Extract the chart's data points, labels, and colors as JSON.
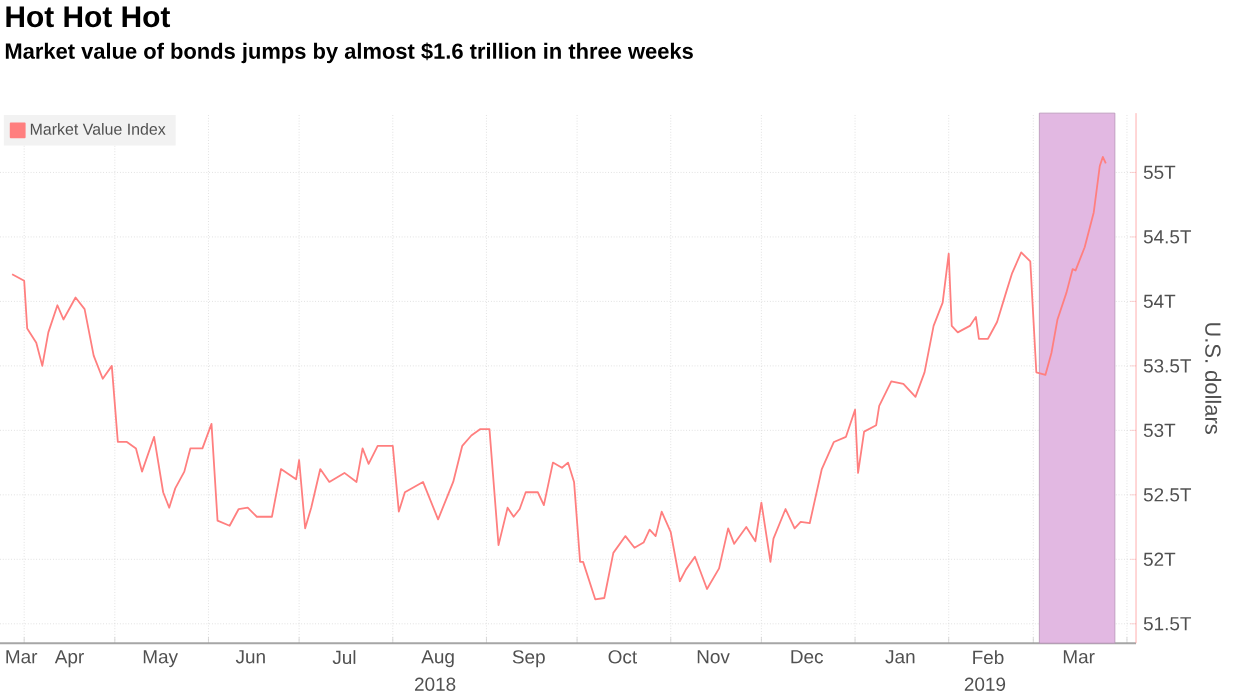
{
  "chart_data": {
    "type": "line",
    "title": "Hot Hot Hot",
    "subtitle": "Market value of bonds jumps by almost $1.6 trillion in three weeks",
    "ylabel": "U.S. dollars",
    "legend": "top left",
    "grid": true,
    "xlim": [
      "2018-03-24",
      "2019-04-04"
    ],
    "ylim": [
      51.35,
      55.46
    ],
    "xticks": [
      {
        "value": "2018-04-01",
        "label": null
      },
      {
        "value": "2018-05-01",
        "label": null
      },
      {
        "value": "2018-06-01",
        "label": null
      },
      {
        "value": "2018-07-01",
        "label": null
      },
      {
        "value": "2018-08-01",
        "label": null
      },
      {
        "value": "2018-09-01",
        "label": null
      },
      {
        "value": "2018-10-01",
        "label": null
      },
      {
        "value": "2018-11-01",
        "label": null
      },
      {
        "value": "2018-12-01",
        "label": null
      },
      {
        "value": "2019-01-01",
        "label": null
      },
      {
        "value": "2019-02-01",
        "label": null
      },
      {
        "value": "2019-03-01",
        "label": null
      },
      {
        "value": "2019-04-01",
        "label": null
      },
      {
        "value": "2018-03-31",
        "label": "Mar"
      },
      {
        "value": "2018-04-16",
        "label": "Apr"
      },
      {
        "value": "2018-05-16",
        "label": "May"
      },
      {
        "value": "2018-06-15",
        "label": "Jun"
      },
      {
        "value": "2018-07-16",
        "label": "Jul"
      },
      {
        "value": "2018-08-16",
        "label": "Aug"
      },
      {
        "value": "2018-09-15",
        "label": "Sep"
      },
      {
        "value": "2018-10-16",
        "label": "Oct"
      },
      {
        "value": "2018-11-15",
        "label": "Nov"
      },
      {
        "value": "2018-12-16",
        "label": "Dec"
      },
      {
        "value": "2019-01-16",
        "label": "Jan"
      },
      {
        "value": "2019-02-14",
        "label": "Feb"
      },
      {
        "value": "2019-03-16",
        "label": "Mar"
      }
    ],
    "yticks": [
      {
        "value": 51.5,
        "label": "51.5T"
      },
      {
        "value": 52,
        "label": "52T"
      },
      {
        "value": 52.5,
        "label": "52.5T"
      },
      {
        "value": 53,
        "label": "53T"
      },
      {
        "value": 53.5,
        "label": "53.5T"
      },
      {
        "value": 54,
        "label": "54T"
      },
      {
        "value": 54.5,
        "label": "54.5T"
      },
      {
        "value": 55,
        "label": "55T"
      }
    ],
    "annotations": [
      "2018",
      "2019"
    ],
    "bands": [
      {
        "axis": "x",
        "from": "2019-03-03",
        "to": "2019-03-28",
        "color": "#e2b8e2"
      }
    ],
    "x": [
      "2018-03-28",
      "2018-04-01",
      "2018-04-02",
      "2018-04-05",
      "2018-04-07",
      "2018-04-09",
      "2018-04-12",
      "2018-04-14",
      "2018-04-18",
      "2018-04-21",
      "2018-04-24",
      "2018-04-27",
      "2018-04-30",
      "2018-05-02",
      "2018-05-05",
      "2018-05-08",
      "2018-05-10",
      "2018-05-14",
      "2018-05-17",
      "2018-05-19",
      "2018-05-21",
      "2018-05-24",
      "2018-05-26",
      "2018-05-30",
      "2018-06-02",
      "2018-06-04",
      "2018-06-08",
      "2018-06-11",
      "2018-06-14",
      "2018-06-17",
      "2018-06-22",
      "2018-06-25",
      "2018-06-30",
      "2018-07-01",
      "2018-07-03",
      "2018-07-05",
      "2018-07-08",
      "2018-07-11",
      "2018-07-16",
      "2018-07-20",
      "2018-07-22",
      "2018-07-24",
      "2018-07-27",
      "2018-08-01",
      "2018-08-03",
      "2018-08-05",
      "2018-08-11",
      "2018-08-16",
      "2018-08-21",
      "2018-08-24",
      "2018-08-27",
      "2018-08-30",
      "2018-09-02",
      "2018-09-05",
      "2018-09-08",
      "2018-09-10",
      "2018-09-12",
      "2018-09-14",
      "2018-09-18",
      "2018-09-20",
      "2018-09-23",
      "2018-09-26",
      "2018-09-28",
      "2018-09-30",
      "2018-10-02",
      "2018-10-03",
      "2018-10-07",
      "2018-10-10",
      "2018-10-13",
      "2018-10-17",
      "2018-10-20",
      "2018-10-23",
      "2018-10-25",
      "2018-10-27",
      "2018-10-29",
      "2018-11-01",
      "2018-11-04",
      "2018-11-06",
      "2018-11-09",
      "2018-11-13",
      "2018-11-17",
      "2018-11-20",
      "2018-11-22",
      "2018-11-26",
      "2018-11-29",
      "2018-12-01",
      "2018-12-04",
      "2018-12-05",
      "2018-12-09",
      "2018-12-12",
      "2018-12-14",
      "2018-12-17",
      "2018-12-21",
      "2018-12-25",
      "2018-12-29",
      "2019-01-01",
      "2019-01-02",
      "2019-01-04",
      "2019-01-08",
      "2019-01-09",
      "2019-01-13",
      "2019-01-17",
      "2019-01-21",
      "2019-01-24",
      "2019-01-27",
      "2019-01-30",
      "2019-02-01",
      "2019-02-02",
      "2019-02-04",
      "2019-02-08",
      "2019-02-10",
      "2019-02-11",
      "2019-02-14",
      "2019-02-17",
      "2019-02-20",
      "2019-02-22",
      "2019-02-25",
      "2019-02-28",
      "2019-03-02",
      "2019-03-05",
      "2019-03-07",
      "2019-03-09",
      "2019-03-12",
      "2019-03-14",
      "2019-03-15",
      "2019-03-18",
      "2019-03-21",
      "2019-03-23",
      "2019-03-24",
      "2019-03-25"
    ],
    "series": [
      {
        "name": "Market Value Index",
        "color": "#ff7f7f",
        "values": [
          54.21,
          54.16,
          53.79,
          53.68,
          53.5,
          53.76,
          53.97,
          53.86,
          54.03,
          53.94,
          53.58,
          53.4,
          53.5,
          52.91,
          52.91,
          52.86,
          52.68,
          52.95,
          52.52,
          52.4,
          52.55,
          52.68,
          52.86,
          52.86,
          53.05,
          52.3,
          52.26,
          52.39,
          52.4,
          52.33,
          52.33,
          52.7,
          52.62,
          52.77,
          52.24,
          52.4,
          52.7,
          52.6,
          52.67,
          52.6,
          52.86,
          52.74,
          52.88,
          52.88,
          52.37,
          52.52,
          52.6,
          52.31,
          52.6,
          52.88,
          52.96,
          53.01,
          53.01,
          52.11,
          52.4,
          52.33,
          52.39,
          52.52,
          52.52,
          52.42,
          52.75,
          52.71,
          52.75,
          52.6,
          51.98,
          51.98,
          51.69,
          51.7,
          52.05,
          52.18,
          52.09,
          52.13,
          52.23,
          52.18,
          52.37,
          52.21,
          51.83,
          51.92,
          52.02,
          51.77,
          51.93,
          52.24,
          52.12,
          52.25,
          52.14,
          52.44,
          51.98,
          52.16,
          52.39,
          52.24,
          52.29,
          52.28,
          52.7,
          52.91,
          52.95,
          53.16,
          52.67,
          52.99,
          53.04,
          53.19,
          53.38,
          53.36,
          53.26,
          53.45,
          53.81,
          53.99,
          54.37,
          53.81,
          53.76,
          53.81,
          53.88,
          53.71,
          53.71,
          53.84,
          54.07,
          54.22,
          54.38,
          54.31,
          53.45,
          53.43,
          53.6,
          53.86,
          54.07,
          54.25,
          54.24,
          54.42,
          54.69,
          55.05,
          55.12,
          55.07
        ]
      }
    ]
  }
}
